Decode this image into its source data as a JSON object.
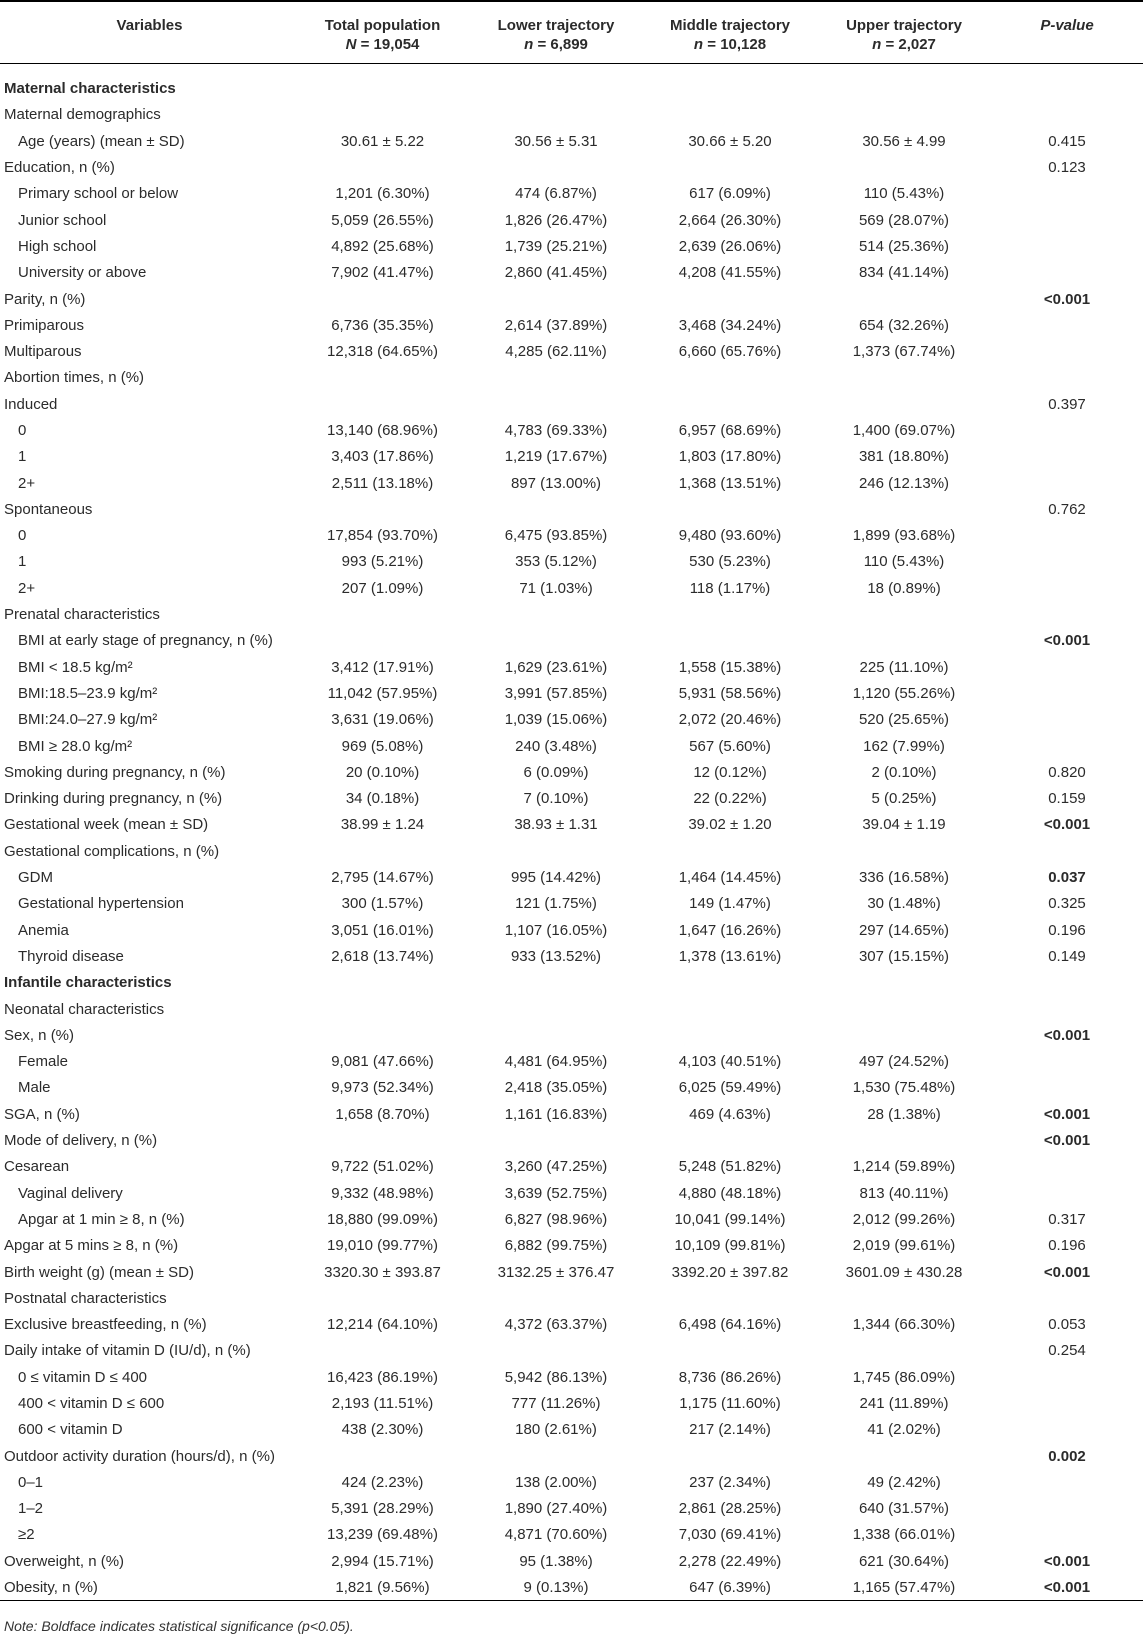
{
  "table": {
    "headers": {
      "variables": "Variables",
      "columns": [
        {
          "label": "Total population",
          "n_label": "N",
          "n_value": "= 19,054"
        },
        {
          "label": "Lower trajectory",
          "n_label": "n",
          "n_value": "= 6,899"
        },
        {
          "label": "Middle trajectory",
          "n_label": "n",
          "n_value": "= 10,128"
        },
        {
          "label": "Upper trajectory",
          "n_label": "n",
          "n_value": "= 2,027"
        }
      ],
      "p_value": "P-value"
    },
    "rows": [
      {
        "label": "Maternal characteristics",
        "style": "section",
        "indent": false,
        "cells": [
          "",
          "",
          "",
          ""
        ],
        "p": "",
        "p_bold": false
      },
      {
        "label": "Maternal demographics",
        "style": "",
        "indent": false,
        "cells": [
          "",
          "",
          "",
          ""
        ],
        "p": "",
        "p_bold": false
      },
      {
        "label": "Age (years) (mean ± SD)",
        "style": "",
        "indent": true,
        "cells": [
          "30.61 ± 5.22",
          "30.56 ± 5.31",
          "30.66 ± 5.20",
          "30.56 ± 4.99"
        ],
        "p": "0.415",
        "p_bold": false
      },
      {
        "label": "Education, n (%)",
        "style": "",
        "indent": false,
        "cells": [
          "",
          "",
          "",
          ""
        ],
        "p": "0.123",
        "p_bold": false
      },
      {
        "label": "Primary school or below",
        "style": "",
        "indent": true,
        "cells": [
          "1,201 (6.30%)",
          "474 (6.87%)",
          "617 (6.09%)",
          "110 (5.43%)"
        ],
        "p": "",
        "p_bold": false
      },
      {
        "label": "Junior school",
        "style": "",
        "indent": true,
        "cells": [
          "5,059 (26.55%)",
          "1,826 (26.47%)",
          "2,664 (26.30%)",
          "569 (28.07%)"
        ],
        "p": "",
        "p_bold": false
      },
      {
        "label": "High school",
        "style": "",
        "indent": true,
        "cells": [
          "4,892 (25.68%)",
          "1,739 (25.21%)",
          "2,639 (26.06%)",
          "514 (25.36%)"
        ],
        "p": "",
        "p_bold": false
      },
      {
        "label": "University or above",
        "style": "",
        "indent": true,
        "cells": [
          "7,902 (41.47%)",
          "2,860 (41.45%)",
          "4,208 (41.55%)",
          "834 (41.14%)"
        ],
        "p": "",
        "p_bold": false
      },
      {
        "label": "Parity, n (%)",
        "style": "",
        "indent": false,
        "cells": [
          "",
          "",
          "",
          ""
        ],
        "p": "<0.001",
        "p_bold": true
      },
      {
        "label": "Primiparous",
        "style": "",
        "indent": false,
        "cells": [
          "6,736 (35.35%)",
          "2,614 (37.89%)",
          "3,468 (34.24%)",
          "654 (32.26%)"
        ],
        "p": "",
        "p_bold": false
      },
      {
        "label": "Multiparous",
        "style": "",
        "indent": false,
        "cells": [
          "12,318 (64.65%)",
          "4,285 (62.11%)",
          "6,660 (65.76%)",
          "1,373 (67.74%)"
        ],
        "p": "",
        "p_bold": false
      },
      {
        "label": "Abortion times, n (%)",
        "style": "",
        "indent": false,
        "cells": [
          "",
          "",
          "",
          ""
        ],
        "p": "",
        "p_bold": false
      },
      {
        "label": "Induced",
        "style": "",
        "indent": false,
        "cells": [
          "",
          "",
          "",
          ""
        ],
        "p": "0.397",
        "p_bold": false
      },
      {
        "label": "0",
        "style": "",
        "indent": true,
        "cells": [
          "13,140 (68.96%)",
          "4,783 (69.33%)",
          "6,957 (68.69%)",
          "1,400 (69.07%)"
        ],
        "p": "",
        "p_bold": false
      },
      {
        "label": "1",
        "style": "",
        "indent": true,
        "cells": [
          "3,403 (17.86%)",
          "1,219 (17.67%)",
          "1,803 (17.80%)",
          "381 (18.80%)"
        ],
        "p": "",
        "p_bold": false
      },
      {
        "label": "2+",
        "style": "",
        "indent": true,
        "cells": [
          "2,511 (13.18%)",
          "897 (13.00%)",
          "1,368 (13.51%)",
          "246 (12.13%)"
        ],
        "p": "",
        "p_bold": false
      },
      {
        "label": "Spontaneous",
        "style": "",
        "indent": false,
        "cells": [
          "",
          "",
          "",
          ""
        ],
        "p": "0.762",
        "p_bold": false
      },
      {
        "label": "0",
        "style": "",
        "indent": true,
        "cells": [
          "17,854 (93.70%)",
          "6,475 (93.85%)",
          "9,480 (93.60%)",
          "1,899 (93.68%)"
        ],
        "p": "",
        "p_bold": false
      },
      {
        "label": "1",
        "style": "",
        "indent": true,
        "cells": [
          "993 (5.21%)",
          "353 (5.12%)",
          "530 (5.23%)",
          "110 (5.43%)"
        ],
        "p": "",
        "p_bold": false
      },
      {
        "label": "2+",
        "style": "",
        "indent": true,
        "cells": [
          "207 (1.09%)",
          "71 (1.03%)",
          "118 (1.17%)",
          "18 (0.89%)"
        ],
        "p": "",
        "p_bold": false
      },
      {
        "label": "Prenatal characteristics",
        "style": "",
        "indent": false,
        "cells": [
          "",
          "",
          "",
          ""
        ],
        "p": "",
        "p_bold": false
      },
      {
        "label": "BMI at early stage of pregnancy, n (%)",
        "style": "",
        "indent": true,
        "cells": [
          "",
          "",
          "",
          ""
        ],
        "p": "<0.001",
        "p_bold": true
      },
      {
        "label": "BMI < 18.5 kg/m²",
        "style": "",
        "indent": true,
        "cells": [
          "3,412 (17.91%)",
          "1,629 (23.61%)",
          "1,558 (15.38%)",
          "225 (11.10%)"
        ],
        "p": "",
        "p_bold": false
      },
      {
        "label": "BMI:18.5–23.9 kg/m²",
        "style": "",
        "indent": true,
        "cells": [
          "11,042 (57.95%)",
          "3,991 (57.85%)",
          "5,931 (58.56%)",
          "1,120 (55.26%)"
        ],
        "p": "",
        "p_bold": false
      },
      {
        "label": "BMI:24.0–27.9 kg/m²",
        "style": "",
        "indent": true,
        "cells": [
          "3,631 (19.06%)",
          "1,039 (15.06%)",
          "2,072 (20.46%)",
          "520 (25.65%)"
        ],
        "p": "",
        "p_bold": false
      },
      {
        "label": "BMI ≥ 28.0 kg/m²",
        "style": "",
        "indent": true,
        "cells": [
          "969 (5.08%)",
          "240 (3.48%)",
          "567 (5.60%)",
          "162 (7.99%)"
        ],
        "p": "",
        "p_bold": false
      },
      {
        "label": "Smoking during pregnancy, n (%)",
        "style": "",
        "indent": false,
        "cells": [
          "20 (0.10%)",
          "6 (0.09%)",
          "12 (0.12%)",
          "2 (0.10%)"
        ],
        "p": "0.820",
        "p_bold": false
      },
      {
        "label": "Drinking during pregnancy, n (%)",
        "style": "",
        "indent": false,
        "cells": [
          "34 (0.18%)",
          "7 (0.10%)",
          "22 (0.22%)",
          "5 (0.25%)"
        ],
        "p": "0.159",
        "p_bold": false
      },
      {
        "label": "Gestational week (mean ± SD)",
        "style": "",
        "indent": false,
        "cells": [
          "38.99 ± 1.24",
          "38.93 ± 1.31",
          "39.02 ± 1.20",
          "39.04 ± 1.19"
        ],
        "p": "<0.001",
        "p_bold": true
      },
      {
        "label": "Gestational complications, n (%)",
        "style": "",
        "indent": false,
        "cells": [
          "",
          "",
          "",
          ""
        ],
        "p": "",
        "p_bold": false
      },
      {
        "label": "GDM",
        "style": "",
        "indent": true,
        "cells": [
          "2,795 (14.67%)",
          "995 (14.42%)",
          "1,464 (14.45%)",
          "336 (16.58%)"
        ],
        "p": "0.037",
        "p_bold": true
      },
      {
        "label": "Gestational hypertension",
        "style": "",
        "indent": true,
        "cells": [
          "300 (1.57%)",
          "121 (1.75%)",
          "149 (1.47%)",
          "30 (1.48%)"
        ],
        "p": "0.325",
        "p_bold": false
      },
      {
        "label": "Anemia",
        "style": "",
        "indent": true,
        "cells": [
          "3,051 (16.01%)",
          "1,107 (16.05%)",
          "1,647 (16.26%)",
          "297 (14.65%)"
        ],
        "p": "0.196",
        "p_bold": false
      },
      {
        "label": "Thyroid disease",
        "style": "",
        "indent": true,
        "cells": [
          "2,618 (13.74%)",
          "933 (13.52%)",
          "1,378 (13.61%)",
          "307 (15.15%)"
        ],
        "p": "0.149",
        "p_bold": false
      },
      {
        "label": "Infantile characteristics",
        "style": "section",
        "indent": false,
        "cells": [
          "",
          "",
          "",
          ""
        ],
        "p": "",
        "p_bold": false
      },
      {
        "label": "Neonatal characteristics",
        "style": "",
        "indent": false,
        "cells": [
          "",
          "",
          "",
          ""
        ],
        "p": "",
        "p_bold": false
      },
      {
        "label": "Sex, n (%)",
        "style": "",
        "indent": false,
        "cells": [
          "",
          "",
          "",
          ""
        ],
        "p": "<0.001",
        "p_bold": true
      },
      {
        "label": "Female",
        "style": "",
        "indent": true,
        "cells": [
          "9,081 (47.66%)",
          "4,481 (64.95%)",
          "4,103 (40.51%)",
          "497 (24.52%)"
        ],
        "p": "",
        "p_bold": false
      },
      {
        "label": "Male",
        "style": "",
        "indent": true,
        "cells": [
          "9,973 (52.34%)",
          "2,418 (35.05%)",
          "6,025 (59.49%)",
          "1,530 (75.48%)"
        ],
        "p": "",
        "p_bold": false
      },
      {
        "label": "SGA, n (%)",
        "style": "",
        "indent": false,
        "cells": [
          "1,658 (8.70%)",
          "1,161 (16.83%)",
          "469 (4.63%)",
          "28 (1.38%)"
        ],
        "p": "<0.001",
        "p_bold": true
      },
      {
        "label": "Mode of delivery, n (%)",
        "style": "",
        "indent": false,
        "cells": [
          "",
          "",
          "",
          ""
        ],
        "p": "<0.001",
        "p_bold": true
      },
      {
        "label": "Cesarean",
        "style": "",
        "indent": false,
        "cells": [
          "9,722 (51.02%)",
          "3,260 (47.25%)",
          "5,248 (51.82%)",
          "1,214 (59.89%)"
        ],
        "p": "",
        "p_bold": false
      },
      {
        "label": "Vaginal delivery",
        "style": "",
        "indent": true,
        "cells": [
          "9,332 (48.98%)",
          "3,639 (52.75%)",
          "4,880 (48.18%)",
          "813 (40.11%)"
        ],
        "p": "",
        "p_bold": false
      },
      {
        "label": "Apgar at 1 min ≥ 8, n (%)",
        "style": "",
        "indent": true,
        "cells": [
          "18,880 (99.09%)",
          "6,827 (98.96%)",
          "10,041 (99.14%)",
          "2,012 (99.26%)"
        ],
        "p": "0.317",
        "p_bold": false
      },
      {
        "label": "Apgar at 5 mins ≥ 8, n (%)",
        "style": "",
        "indent": false,
        "cells": [
          "19,010 (99.77%)",
          "6,882 (99.75%)",
          "10,109 (99.81%)",
          "2,019 (99.61%)"
        ],
        "p": "0.196",
        "p_bold": false
      },
      {
        "label": "Birth weight (g) (mean ± SD)",
        "style": "",
        "indent": false,
        "cells": [
          "3320.30 ± 393.87",
          "3132.25 ± 376.47",
          "3392.20 ± 397.82",
          "3601.09 ± 430.28"
        ],
        "p": "<0.001",
        "p_bold": true
      },
      {
        "label": "Postnatal characteristics",
        "style": "",
        "indent": false,
        "cells": [
          "",
          "",
          "",
          ""
        ],
        "p": "",
        "p_bold": false
      },
      {
        "label": "Exclusive breastfeeding, n (%)",
        "style": "",
        "indent": false,
        "cells": [
          "12,214 (64.10%)",
          "4,372 (63.37%)",
          "6,498 (64.16%)",
          "1,344 (66.30%)"
        ],
        "p": "0.053",
        "p_bold": false
      },
      {
        "label": "Daily intake of vitamin D (IU/d), n (%)",
        "style": "",
        "indent": false,
        "cells": [
          "",
          "",
          "",
          ""
        ],
        "p": "0.254",
        "p_bold": false
      },
      {
        "label": "0 ≤ vitamin D ≤ 400",
        "style": "",
        "indent": true,
        "cells": [
          "16,423 (86.19%)",
          "5,942 (86.13%)",
          "8,736 (86.26%)",
          "1,745 (86.09%)"
        ],
        "p": "",
        "p_bold": false
      },
      {
        "label": "400 < vitamin D ≤ 600",
        "style": "",
        "indent": true,
        "cells": [
          "2,193 (11.51%)",
          "777 (11.26%)",
          "1,175 (11.60%)",
          "241 (11.89%)"
        ],
        "p": "",
        "p_bold": false
      },
      {
        "label": "600 < vitamin D",
        "style": "",
        "indent": true,
        "cells": [
          "438 (2.30%)",
          "180 (2.61%)",
          "217 (2.14%)",
          "41 (2.02%)"
        ],
        "p": "",
        "p_bold": false
      },
      {
        "label": "Outdoor activity duration (hours/d), n (%)",
        "style": "",
        "indent": false,
        "cells": [
          "",
          "",
          "",
          ""
        ],
        "p": "0.002",
        "p_bold": true
      },
      {
        "label": "0–1",
        "style": "",
        "indent": true,
        "cells": [
          "424 (2.23%)",
          "138 (2.00%)",
          "237 (2.34%)",
          "49 (2.42%)"
        ],
        "p": "",
        "p_bold": false
      },
      {
        "label": "1–2",
        "style": "",
        "indent": true,
        "cells": [
          "5,391 (28.29%)",
          "1,890 (27.40%)",
          "2,861 (28.25%)",
          "640 (31.57%)"
        ],
        "p": "",
        "p_bold": false
      },
      {
        "label": "≥2",
        "style": "",
        "indent": true,
        "cells": [
          "13,239 (69.48%)",
          "4,871 (70.60%)",
          "7,030 (69.41%)",
          "1,338 (66.01%)"
        ],
        "p": "",
        "p_bold": false
      },
      {
        "label": "Overweight, n (%)",
        "style": "",
        "indent": false,
        "cells": [
          "2,994 (15.71%)",
          "95 (1.38%)",
          "2,278 (22.49%)",
          "621 (30.64%)"
        ],
        "p": "<0.001",
        "p_bold": true
      },
      {
        "label": "Obesity, n (%)",
        "style": "",
        "indent": false,
        "cells": [
          "1,821 (9.56%)",
          "9 (0.13%)",
          "647 (6.39%)",
          "1,165 (57.47%)"
        ],
        "p": "<0.001",
        "p_bold": true
      }
    ]
  },
  "note": "Note: Boldface indicates statistical significance (p<0.05)."
}
